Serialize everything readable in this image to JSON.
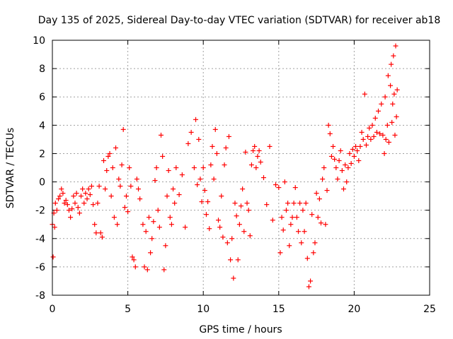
{
  "chart_data": {
    "type": "scatter",
    "title": "Day 135 of 2025, Sidereal Day-to-day VTEC variation (SDTVAR) for receiver ab18",
    "xlabel": "GPS time / hours",
    "ylabel": "SDTVAR / TECUs",
    "xlim": [
      0,
      25
    ],
    "ylim": [
      -8,
      10
    ],
    "xticks": [
      0,
      5,
      10,
      15,
      20,
      25
    ],
    "yticks": [
      -8,
      -6,
      -4,
      -2,
      0,
      2,
      4,
      6,
      8,
      10
    ],
    "grid": true,
    "marker": "+",
    "color": "#ff0000",
    "series": [
      {
        "name": "SDTVAR",
        "points": [
          [
            0.0,
            -3.0
          ],
          [
            0.05,
            -5.3
          ],
          [
            0.1,
            -2.2
          ],
          [
            0.15,
            -3.2
          ],
          [
            0.2,
            -1.5
          ],
          [
            0.3,
            -2.0
          ],
          [
            0.4,
            -1.2
          ],
          [
            0.5,
            -1.0
          ],
          [
            0.6,
            -0.5
          ],
          [
            0.7,
            -0.8
          ],
          [
            0.8,
            -1.5
          ],
          [
            0.9,
            -1.3
          ],
          [
            1.0,
            -1.6
          ],
          [
            1.1,
            -2.0
          ],
          [
            1.2,
            -2.5
          ],
          [
            1.3,
            -1.9
          ],
          [
            1.4,
            -1.0
          ],
          [
            1.5,
            -1.5
          ],
          [
            1.6,
            -0.8
          ],
          [
            1.7,
            -1.8
          ],
          [
            1.8,
            -2.2
          ],
          [
            1.9,
            -1.0
          ],
          [
            2.0,
            -0.5
          ],
          [
            2.1,
            -1.5
          ],
          [
            2.2,
            -0.8
          ],
          [
            2.3,
            -1.2
          ],
          [
            2.4,
            -0.5
          ],
          [
            2.5,
            -0.9
          ],
          [
            2.6,
            -0.3
          ],
          [
            2.7,
            -1.6
          ],
          [
            2.8,
            -3.0
          ],
          [
            2.9,
            -3.6
          ],
          [
            3.0,
            -1.5
          ],
          [
            3.1,
            -0.3
          ],
          [
            3.2,
            -3.6
          ],
          [
            3.3,
            -3.9
          ],
          [
            3.4,
            1.5
          ],
          [
            3.5,
            -0.5
          ],
          [
            3.6,
            0.8
          ],
          [
            3.7,
            1.8
          ],
          [
            3.8,
            2.0
          ],
          [
            3.9,
            -1.0
          ],
          [
            4.0,
            1.0
          ],
          [
            4.1,
            -2.5
          ],
          [
            4.2,
            2.4
          ],
          [
            4.3,
            -3.0
          ],
          [
            4.4,
            0.2
          ],
          [
            4.5,
            -0.3
          ],
          [
            4.6,
            1.2
          ],
          [
            4.7,
            3.7
          ],
          [
            4.8,
            -1.8
          ],
          [
            4.9,
            -1.0
          ],
          [
            5.0,
            -2.1
          ],
          [
            5.1,
            1.0
          ],
          [
            5.2,
            -0.3
          ],
          [
            5.3,
            -5.3
          ],
          [
            5.4,
            -5.5
          ],
          [
            5.5,
            -6.0
          ],
          [
            5.6,
            0.2
          ],
          [
            5.7,
            -0.5
          ],
          [
            5.8,
            -1.2
          ],
          [
            6.0,
            -3.0
          ],
          [
            6.1,
            -6.0
          ],
          [
            6.2,
            -3.5
          ],
          [
            6.3,
            -6.2
          ],
          [
            6.4,
            -2.5
          ],
          [
            6.5,
            -5.0
          ],
          [
            6.6,
            -4.0
          ],
          [
            6.7,
            -2.8
          ],
          [
            6.8,
            0.1
          ],
          [
            6.9,
            1.0
          ],
          [
            7.0,
            -2.0
          ],
          [
            7.1,
            -3.2
          ],
          [
            7.2,
            3.3
          ],
          [
            7.3,
            1.8
          ],
          [
            7.4,
            -6.2
          ],
          [
            7.5,
            -4.5
          ],
          [
            7.6,
            -1.0
          ],
          [
            7.7,
            0.8
          ],
          [
            7.8,
            -2.5
          ],
          [
            7.9,
            -3.0
          ],
          [
            8.0,
            -0.5
          ],
          [
            8.1,
            -1.5
          ],
          [
            8.2,
            1.0
          ],
          [
            8.4,
            -0.9
          ],
          [
            8.6,
            0.5
          ],
          [
            8.8,
            -3.2
          ],
          [
            9.0,
            2.7
          ],
          [
            9.2,
            3.5
          ],
          [
            9.4,
            1.0
          ],
          [
            9.5,
            4.4
          ],
          [
            9.6,
            -0.2
          ],
          [
            9.7,
            3.0
          ],
          [
            9.8,
            0.2
          ],
          [
            9.9,
            -1.4
          ],
          [
            10.0,
            1.0
          ],
          [
            10.1,
            -0.6
          ],
          [
            10.2,
            -2.3
          ],
          [
            10.3,
            -1.4
          ],
          [
            10.4,
            -3.3
          ],
          [
            10.5,
            1.2
          ],
          [
            10.6,
            2.5
          ],
          [
            10.7,
            0.2
          ],
          [
            10.8,
            3.7
          ],
          [
            10.9,
            2.0
          ],
          [
            11.0,
            -2.7
          ],
          [
            11.1,
            -3.2
          ],
          [
            11.2,
            -1.0
          ],
          [
            11.3,
            -3.9
          ],
          [
            11.4,
            1.2
          ],
          [
            11.5,
            2.4
          ],
          [
            11.6,
            -4.3
          ],
          [
            11.7,
            3.2
          ],
          [
            11.8,
            -5.5
          ],
          [
            11.9,
            -4.0
          ],
          [
            12.0,
            -6.8
          ],
          [
            12.1,
            -1.5
          ],
          [
            12.2,
            -2.4
          ],
          [
            12.3,
            -5.5
          ],
          [
            12.4,
            -3.0
          ],
          [
            12.5,
            -1.7
          ],
          [
            12.6,
            -0.5
          ],
          [
            12.7,
            -3.5
          ],
          [
            12.8,
            2.1
          ],
          [
            12.9,
            -1.5
          ],
          [
            13.0,
            -2.0
          ],
          [
            13.1,
            -3.8
          ],
          [
            13.2,
            1.2
          ],
          [
            13.3,
            2.2
          ],
          [
            13.4,
            2.5
          ],
          [
            13.5,
            1.0
          ],
          [
            13.6,
            1.8
          ],
          [
            13.7,
            2.2
          ],
          [
            13.8,
            1.4
          ],
          [
            14.0,
            0.3
          ],
          [
            14.2,
            -1.6
          ],
          [
            14.4,
            2.5
          ],
          [
            14.6,
            -2.7
          ],
          [
            14.8,
            -0.2
          ],
          [
            15.0,
            -0.4
          ],
          [
            15.1,
            -5.0
          ],
          [
            15.2,
            -2.5
          ],
          [
            15.3,
            -3.4
          ],
          [
            15.4,
            0.0
          ],
          [
            15.5,
            -2.0
          ],
          [
            15.6,
            -1.5
          ],
          [
            15.7,
            -4.5
          ],
          [
            15.8,
            -3.0
          ],
          [
            15.9,
            -2.5
          ],
          [
            16.0,
            -1.5
          ],
          [
            16.1,
            -0.4
          ],
          [
            16.2,
            -2.5
          ],
          [
            16.3,
            -3.5
          ],
          [
            16.4,
            -1.5
          ],
          [
            16.5,
            -4.3
          ],
          [
            16.6,
            -2.0
          ],
          [
            16.7,
            -3.5
          ],
          [
            16.8,
            -1.5
          ],
          [
            16.9,
            -5.4
          ],
          [
            17.0,
            -7.4
          ],
          [
            17.1,
            -7.0
          ],
          [
            17.2,
            -2.3
          ],
          [
            17.3,
            -5.0
          ],
          [
            17.4,
            -4.3
          ],
          [
            17.5,
            -0.8
          ],
          [
            17.6,
            -2.5
          ],
          [
            17.7,
            -1.2
          ],
          [
            17.8,
            -2.9
          ],
          [
            17.9,
            0.2
          ],
          [
            18.0,
            1.0
          ],
          [
            18.1,
            -3.0
          ],
          [
            18.2,
            -0.6
          ],
          [
            18.3,
            4.0
          ],
          [
            18.4,
            3.4
          ],
          [
            18.5,
            1.8
          ],
          [
            18.6,
            2.5
          ],
          [
            18.7,
            1.6
          ],
          [
            18.8,
            1.0
          ],
          [
            18.9,
            0.2
          ],
          [
            19.0,
            1.5
          ],
          [
            19.1,
            2.2
          ],
          [
            19.2,
            0.8
          ],
          [
            19.3,
            -0.5
          ],
          [
            19.4,
            1.2
          ],
          [
            19.5,
            0.0
          ],
          [
            19.6,
            1.0
          ],
          [
            19.7,
            2.0
          ],
          [
            19.8,
            1.3
          ],
          [
            19.9,
            2.3
          ],
          [
            20.0,
            1.8
          ],
          [
            20.1,
            2.5
          ],
          [
            20.2,
            2.2
          ],
          [
            20.3,
            1.5
          ],
          [
            20.4,
            2.5
          ],
          [
            20.5,
            3.5
          ],
          [
            20.6,
            3.0
          ],
          [
            20.7,
            6.2
          ],
          [
            20.8,
            2.6
          ],
          [
            20.9,
            3.2
          ],
          [
            21.0,
            3.8
          ],
          [
            21.1,
            3.0
          ],
          [
            21.2,
            4.0
          ],
          [
            21.3,
            3.2
          ],
          [
            21.4,
            4.5
          ],
          [
            21.5,
            3.5
          ],
          [
            21.6,
            5.0
          ],
          [
            21.7,
            3.4
          ],
          [
            21.8,
            5.5
          ],
          [
            21.9,
            3.3
          ],
          [
            22.0,
            2.0
          ],
          [
            22.05,
            6.0
          ],
          [
            22.1,
            3.0
          ],
          [
            22.2,
            4.0
          ],
          [
            22.25,
            7.5
          ],
          [
            22.3,
            2.8
          ],
          [
            22.4,
            6.8
          ],
          [
            22.45,
            8.3
          ],
          [
            22.5,
            4.2
          ],
          [
            22.55,
            5.5
          ],
          [
            22.6,
            8.9
          ],
          [
            22.65,
            6.2
          ],
          [
            22.7,
            3.3
          ],
          [
            22.75,
            9.6
          ],
          [
            22.8,
            4.6
          ],
          [
            22.85,
            6.5
          ]
        ]
      }
    ]
  }
}
